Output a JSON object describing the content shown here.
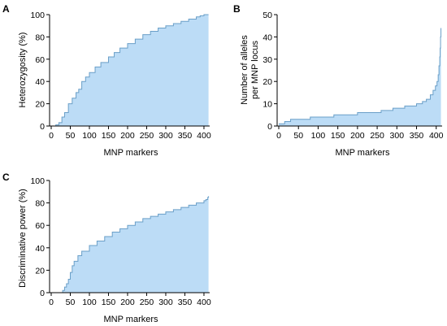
{
  "colors": {
    "fill": "#bcdcf6",
    "line": "#6a9fc8",
    "axis": "#000000"
  },
  "chart_data": [
    {
      "panel": "A",
      "type": "area",
      "xlabel": "MNP markers",
      "ylabel": "Heterozygosity (%)",
      "xlim": [
        0,
        415
      ],
      "ylim": [
        0,
        100
      ],
      "xticks": [
        0,
        50,
        100,
        150,
        200,
        250,
        300,
        350,
        400
      ],
      "yticks": [
        0,
        20,
        40,
        60,
        80,
        100
      ],
      "x": [
        0,
        12,
        20,
        28,
        35,
        45,
        55,
        65,
        72,
        80,
        90,
        100,
        115,
        130,
        150,
        165,
        180,
        200,
        220,
        240,
        260,
        280,
        300,
        320,
        340,
        360,
        380,
        390,
        400,
        412
      ],
      "y": [
        0,
        1,
        3,
        8,
        12,
        20,
        25,
        30,
        33,
        40,
        44,
        48,
        53,
        57,
        62,
        66,
        70,
        74,
        78,
        82,
        85,
        88,
        90,
        92,
        94,
        96,
        98,
        99,
        100,
        100
      ]
    },
    {
      "panel": "B",
      "type": "area",
      "xlabel": "MNP markers",
      "ylabel_lines": [
        "Number of alleles",
        "per MNP locus"
      ],
      "xlim": [
        0,
        415
      ],
      "ylim": [
        0,
        50
      ],
      "xticks": [
        0,
        50,
        100,
        150,
        200,
        250,
        300,
        350,
        400
      ],
      "yticks": [
        0,
        10,
        20,
        30,
        40,
        50
      ],
      "x": [
        0,
        15,
        30,
        80,
        140,
        200,
        260,
        290,
        320,
        350,
        365,
        375,
        385,
        392,
        398,
        402,
        405,
        407,
        409,
        410,
        411,
        412
      ],
      "y": [
        1,
        2,
        3,
        4,
        5,
        6,
        7,
        8,
        9,
        10,
        11,
        12,
        14,
        16,
        18,
        20,
        23,
        27,
        31,
        35,
        40,
        44
      ]
    },
    {
      "panel": "C",
      "type": "area",
      "xlabel": "MNP markers",
      "ylabel": "Discriminative power (%)",
      "xlim": [
        0,
        415
      ],
      "ylim": [
        0,
        100
      ],
      "xticks": [
        0,
        50,
        100,
        150,
        200,
        250,
        300,
        350,
        400
      ],
      "yticks": [
        0,
        20,
        40,
        60,
        80,
        100
      ],
      "x": [
        28,
        30,
        35,
        40,
        45,
        50,
        55,
        60,
        70,
        80,
        100,
        120,
        140,
        160,
        180,
        200,
        220,
        240,
        260,
        280,
        300,
        320,
        340,
        360,
        380,
        400,
        405,
        410,
        412
      ],
      "y": [
        0,
        2,
        5,
        8,
        12,
        18,
        24,
        28,
        33,
        37,
        42,
        46,
        50,
        54,
        57,
        60,
        63,
        66,
        68,
        70,
        72,
        74,
        76,
        78,
        80,
        82,
        83,
        85,
        86
      ]
    }
  ]
}
